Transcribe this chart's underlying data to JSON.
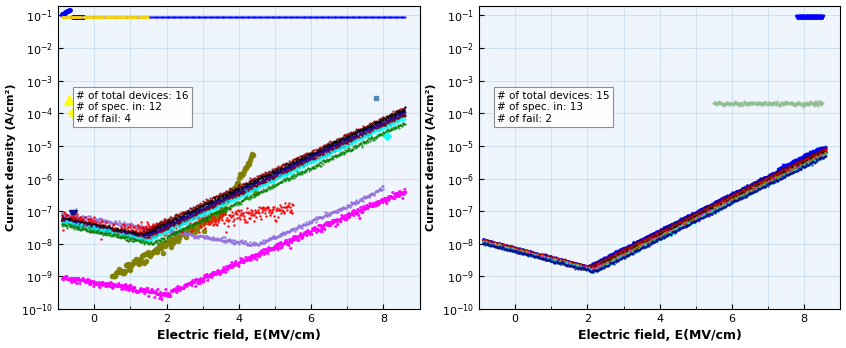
{
  "fig_width": 8.46,
  "fig_height": 3.48,
  "dpi": 100,
  "xlabel": "Electric field, E(MV/cm)",
  "ylabel": "Current density (A/cm²)",
  "grid_color": "#b8d0e8",
  "background_color": "#eef5fc",
  "left_annotation": "# of total devices: 16\n# of spec. in: 12\n# of fail: 4",
  "right_annotation": "# of total devices: 15\n# of spec. in: 13\n# of fail: 2"
}
